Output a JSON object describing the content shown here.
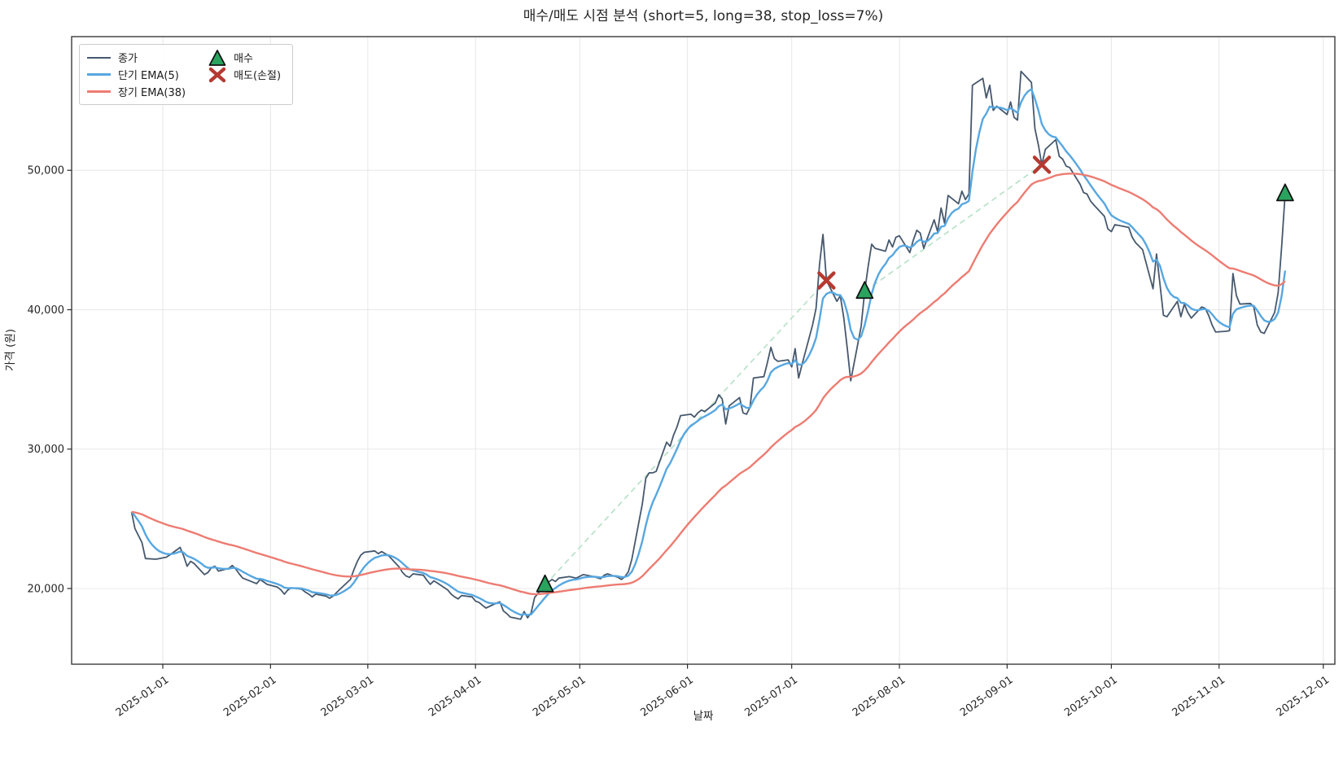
{
  "title": "매수/매도 시점 분석 (short=5, long=38, stop_loss=7%)",
  "axes": {
    "x_label": "날짜",
    "y_label": "가격 (원)",
    "x_ticks": [
      "2025-01-01",
      "2025-02-01",
      "2025-03-01",
      "2025-04-01",
      "2025-05-01",
      "2025-06-01",
      "2025-07-01",
      "2025-08-01",
      "2025-09-01",
      "2025-10-01",
      "2025-11-01",
      "2025-12-01"
    ],
    "y_ticks": [
      {
        "value": 20000,
        "label": "20,000"
      },
      {
        "value": 30000,
        "label": "30,000"
      },
      {
        "value": 40000,
        "label": "40,000"
      },
      {
        "value": 50000,
        "label": "50,000"
      }
    ]
  },
  "legend": {
    "series": [
      {
        "label": "종가",
        "color": "#46586d",
        "thickness": 2
      },
      {
        "label": "단기 EMA(5)",
        "color": "#57a7e0",
        "thickness": 3
      },
      {
        "label": "장기 EMA(38)",
        "color": "#ed7c72",
        "thickness": 3
      }
    ],
    "markers": [
      {
        "label": "매수",
        "type": "triangle-up",
        "color": "#2aa35f",
        "edge": "#111111"
      },
      {
        "label": "매도(손절)",
        "type": "x",
        "color": "#b53a31"
      }
    ]
  },
  "chart_data": {
    "type": "line",
    "title": "매수/매도 시점 분석 (short=5, long=38, stop_loss=7%)",
    "xlabel": "날짜",
    "ylabel": "가격 (원)",
    "xlim": [
      "2024-12-06",
      "2025-12-04"
    ],
    "ylim": [
      14500,
      59600
    ],
    "grid": true,
    "legend_position": "upper left",
    "colors": {
      "close": "#46586d",
      "ema_short": "#57a7e0",
      "ema_long": "#ed7c72",
      "buy": "#2aa35f",
      "sell": "#b53a31",
      "trade_line": "#b5e0c6",
      "grid": "#e8e8e8",
      "frame": "#2b2b2b"
    },
    "series": [
      {
        "name": "종가",
        "color": "#46586d",
        "points": [
          [
            "2024-12-23",
            25500
          ],
          [
            "2024-12-24",
            24300
          ],
          [
            "2024-12-26",
            23300
          ],
          [
            "2024-12-27",
            22150
          ],
          [
            "2024-12-30",
            22100
          ],
          [
            "2024-12-31",
            22150
          ],
          [
            "2025-01-02",
            22250
          ],
          [
            "2025-01-03",
            22400
          ],
          [
            "2025-01-06",
            22950
          ],
          [
            "2025-01-07",
            22350
          ],
          [
            "2025-01-08",
            21600
          ],
          [
            "2025-01-09",
            21950
          ],
          [
            "2025-01-10",
            21800
          ],
          [
            "2025-01-13",
            21000
          ],
          [
            "2025-01-14",
            21150
          ],
          [
            "2025-01-15",
            21500
          ],
          [
            "2025-01-16",
            21600
          ],
          [
            "2025-01-17",
            21250
          ],
          [
            "2025-01-20",
            21450
          ],
          [
            "2025-01-21",
            21650
          ],
          [
            "2025-01-22",
            21400
          ],
          [
            "2025-01-23",
            21050
          ],
          [
            "2025-01-24",
            20750
          ],
          [
            "2025-01-27",
            20450
          ],
          [
            "2025-01-28",
            20350
          ],
          [
            "2025-01-29",
            20650
          ],
          [
            "2025-01-31",
            20300
          ],
          [
            "2025-02-03",
            20100
          ],
          [
            "2025-02-04",
            19900
          ],
          [
            "2025-02-05",
            19600
          ],
          [
            "2025-02-06",
            19900
          ],
          [
            "2025-02-07",
            20050
          ],
          [
            "2025-02-10",
            19950
          ],
          [
            "2025-02-11",
            19750
          ],
          [
            "2025-02-12",
            19600
          ],
          [
            "2025-02-13",
            19400
          ],
          [
            "2025-02-14",
            19600
          ],
          [
            "2025-02-17",
            19450
          ],
          [
            "2025-02-18",
            19300
          ],
          [
            "2025-02-19",
            19450
          ],
          [
            "2025-02-20",
            19700
          ],
          [
            "2025-02-21",
            19950
          ],
          [
            "2025-02-24",
            20650
          ],
          [
            "2025-02-25",
            21350
          ],
          [
            "2025-02-26",
            21950
          ],
          [
            "2025-02-27",
            22400
          ],
          [
            "2025-02-28",
            22600
          ],
          [
            "2025-03-03",
            22700
          ],
          [
            "2025-03-04",
            22500
          ],
          [
            "2025-03-05",
            22650
          ],
          [
            "2025-03-06",
            22500
          ],
          [
            "2025-03-07",
            22350
          ],
          [
            "2025-03-10",
            21550
          ],
          [
            "2025-03-11",
            21150
          ],
          [
            "2025-03-12",
            20900
          ],
          [
            "2025-03-13",
            20800
          ],
          [
            "2025-03-14",
            21050
          ],
          [
            "2025-03-17",
            20950
          ],
          [
            "2025-03-18",
            20600
          ],
          [
            "2025-03-19",
            20300
          ],
          [
            "2025-03-20",
            20550
          ],
          [
            "2025-03-21",
            20400
          ],
          [
            "2025-03-24",
            19900
          ],
          [
            "2025-03-25",
            19600
          ],
          [
            "2025-03-26",
            19400
          ],
          [
            "2025-03-27",
            19250
          ],
          [
            "2025-03-28",
            19500
          ],
          [
            "2025-03-31",
            19400
          ],
          [
            "2025-04-01",
            19100
          ],
          [
            "2025-04-02",
            19000
          ],
          [
            "2025-04-03",
            18800
          ],
          [
            "2025-04-04",
            18600
          ],
          [
            "2025-04-07",
            18950
          ],
          [
            "2025-04-08",
            19050
          ],
          [
            "2025-04-09",
            18400
          ],
          [
            "2025-04-10",
            18200
          ],
          [
            "2025-04-11",
            17950
          ],
          [
            "2025-04-14",
            17800
          ],
          [
            "2025-04-15",
            18350
          ],
          [
            "2025-04-16",
            17900
          ],
          [
            "2025-04-17",
            18250
          ],
          [
            "2025-04-18",
            19350
          ],
          [
            "2025-04-21",
            20250
          ],
          [
            "2025-04-22",
            20450
          ],
          [
            "2025-04-23",
            20650
          ],
          [
            "2025-04-24",
            20500
          ],
          [
            "2025-04-25",
            20750
          ],
          [
            "2025-04-28",
            20850
          ],
          [
            "2025-04-30",
            20750
          ],
          [
            "2025-05-02",
            21000
          ],
          [
            "2025-05-05",
            20850
          ],
          [
            "2025-05-07",
            20700
          ],
          [
            "2025-05-08",
            20950
          ],
          [
            "2025-05-09",
            21050
          ],
          [
            "2025-05-12",
            20800
          ],
          [
            "2025-05-13",
            20650
          ],
          [
            "2025-05-14",
            20850
          ],
          [
            "2025-05-15",
            21200
          ],
          [
            "2025-05-16",
            22100
          ],
          [
            "2025-05-19",
            26050
          ],
          [
            "2025-05-20",
            27900
          ],
          [
            "2025-05-21",
            28300
          ],
          [
            "2025-05-22",
            28300
          ],
          [
            "2025-05-23",
            28400
          ],
          [
            "2025-05-26",
            30500
          ],
          [
            "2025-05-27",
            30200
          ],
          [
            "2025-05-28",
            31000
          ],
          [
            "2025-05-29",
            31600
          ],
          [
            "2025-05-30",
            32400
          ],
          [
            "2025-06-02",
            32500
          ],
          [
            "2025-06-03",
            32300
          ],
          [
            "2025-06-04",
            32600
          ],
          [
            "2025-06-05",
            32800
          ],
          [
            "2025-06-06",
            32700
          ],
          [
            "2025-06-09",
            33300
          ],
          [
            "2025-06-10",
            33900
          ],
          [
            "2025-06-11",
            33600
          ],
          [
            "2025-06-12",
            31800
          ],
          [
            "2025-06-13",
            33100
          ],
          [
            "2025-06-16",
            33700
          ],
          [
            "2025-06-17",
            32600
          ],
          [
            "2025-06-18",
            32500
          ],
          [
            "2025-06-19",
            33000
          ],
          [
            "2025-06-20",
            35100
          ],
          [
            "2025-06-23",
            35200
          ],
          [
            "2025-06-24",
            36200
          ],
          [
            "2025-06-25",
            37300
          ],
          [
            "2025-06-26",
            36500
          ],
          [
            "2025-06-27",
            36300
          ],
          [
            "2025-06-30",
            36400
          ],
          [
            "2025-07-01",
            35900
          ],
          [
            "2025-07-02",
            37200
          ],
          [
            "2025-07-03",
            35100
          ],
          [
            "2025-07-04",
            36100
          ],
          [
            "2025-07-07",
            38900
          ],
          [
            "2025-07-08",
            40100
          ],
          [
            "2025-07-09",
            43200
          ],
          [
            "2025-07-10",
            45400
          ],
          [
            "2025-07-11",
            42100
          ],
          [
            "2025-07-14",
            40600
          ],
          [
            "2025-07-15",
            41000
          ],
          [
            "2025-07-16",
            39400
          ],
          [
            "2025-07-17",
            37200
          ],
          [
            "2025-07-18",
            34900
          ],
          [
            "2025-07-21",
            38800
          ],
          [
            "2025-07-22",
            41300
          ],
          [
            "2025-07-23",
            43100
          ],
          [
            "2025-07-24",
            44700
          ],
          [
            "2025-07-25",
            44400
          ],
          [
            "2025-07-28",
            44200
          ],
          [
            "2025-07-29",
            45000
          ],
          [
            "2025-07-30",
            44500
          ],
          [
            "2025-07-31",
            45200
          ],
          [
            "2025-08-01",
            45300
          ],
          [
            "2025-08-04",
            44100
          ],
          [
            "2025-08-05",
            45000
          ],
          [
            "2025-08-06",
            45700
          ],
          [
            "2025-08-07",
            45500
          ],
          [
            "2025-08-08",
            44400
          ],
          [
            "2025-08-11",
            46450
          ],
          [
            "2025-08-12",
            45600
          ],
          [
            "2025-08-13",
            47300
          ],
          [
            "2025-08-14",
            46200
          ],
          [
            "2025-08-15",
            48200
          ],
          [
            "2025-08-18",
            47600
          ],
          [
            "2025-08-19",
            48500
          ],
          [
            "2025-08-20",
            47900
          ],
          [
            "2025-08-21",
            48300
          ],
          [
            "2025-08-22",
            56100
          ],
          [
            "2025-08-25",
            56600
          ],
          [
            "2025-08-26",
            55200
          ],
          [
            "2025-08-27",
            56100
          ],
          [
            "2025-08-28",
            54300
          ],
          [
            "2025-08-29",
            54600
          ],
          [
            "2025-09-01",
            54000
          ],
          [
            "2025-09-02",
            54900
          ],
          [
            "2025-09-03",
            53800
          ],
          [
            "2025-09-04",
            53600
          ],
          [
            "2025-09-05",
            57100
          ],
          [
            "2025-09-08",
            56300
          ],
          [
            "2025-09-09",
            53000
          ],
          [
            "2025-09-10",
            51800
          ],
          [
            "2025-09-11",
            50400
          ],
          [
            "2025-09-12",
            51500
          ],
          [
            "2025-09-15",
            52200
          ],
          [
            "2025-09-16",
            51000
          ],
          [
            "2025-09-17",
            50800
          ],
          [
            "2025-09-18",
            50300
          ],
          [
            "2025-09-19",
            50200
          ],
          [
            "2025-09-22",
            49000
          ],
          [
            "2025-09-23",
            48400
          ],
          [
            "2025-09-24",
            48300
          ],
          [
            "2025-09-25",
            47800
          ],
          [
            "2025-09-26",
            47500
          ],
          [
            "2025-09-29",
            46700
          ],
          [
            "2025-09-30",
            45800
          ],
          [
            "2025-10-01",
            45600
          ],
          [
            "2025-10-02",
            46100
          ],
          [
            "2025-10-06",
            45900
          ],
          [
            "2025-10-07",
            45200
          ],
          [
            "2025-10-08",
            44800
          ],
          [
            "2025-10-10",
            44300
          ],
          [
            "2025-10-13",
            41500
          ],
          [
            "2025-10-14",
            44000
          ],
          [
            "2025-10-15",
            41800
          ],
          [
            "2025-10-16",
            39600
          ],
          [
            "2025-10-17",
            39500
          ],
          [
            "2025-10-20",
            40600
          ],
          [
            "2025-10-21",
            39500
          ],
          [
            "2025-10-22",
            40400
          ],
          [
            "2025-10-23",
            39800
          ],
          [
            "2025-10-24",
            39400
          ],
          [
            "2025-10-27",
            40200
          ],
          [
            "2025-10-28",
            40100
          ],
          [
            "2025-10-29",
            39600
          ],
          [
            "2025-10-30",
            38900
          ],
          [
            "2025-10-31",
            38400
          ],
          [
            "2025-11-03",
            38450
          ],
          [
            "2025-11-04",
            38500
          ],
          [
            "2025-11-05",
            42600
          ],
          [
            "2025-11-06",
            41000
          ],
          [
            "2025-11-07",
            40400
          ],
          [
            "2025-11-10",
            40450
          ],
          [
            "2025-11-11",
            40200
          ],
          [
            "2025-11-12",
            38900
          ],
          [
            "2025-11-13",
            38400
          ],
          [
            "2025-11-14",
            38300
          ],
          [
            "2025-11-17",
            39800
          ],
          [
            "2025-11-18",
            41200
          ],
          [
            "2025-11-19",
            44500
          ],
          [
            "2025-11-20",
            48300
          ]
        ]
      },
      {
        "name": "단기 EMA(5)",
        "color": "#57a7e0",
        "derived_from": "종가",
        "method": "ema",
        "span_trading_days": 5
      },
      {
        "name": "장기 EMA(38)",
        "color": "#ed7c72",
        "derived_from": "종가",
        "method": "ema",
        "span_trading_days": 38
      }
    ],
    "buy_signals": [
      {
        "date": "2025-04-21",
        "price": 20250
      },
      {
        "date": "2025-07-22",
        "price": 41300
      },
      {
        "date": "2025-11-20",
        "price": 48300
      }
    ],
    "sell_signals": [
      {
        "date": "2025-07-11",
        "price": 42100
      },
      {
        "date": "2025-09-11",
        "price": 50400
      }
    ],
    "trade_lines": [
      {
        "from": [
          "2025-04-21",
          20250
        ],
        "to": [
          "2025-07-11",
          42100
        ]
      },
      {
        "from": [
          "2025-07-22",
          41300
        ],
        "to": [
          "2025-09-11",
          50400
        ]
      }
    ]
  }
}
